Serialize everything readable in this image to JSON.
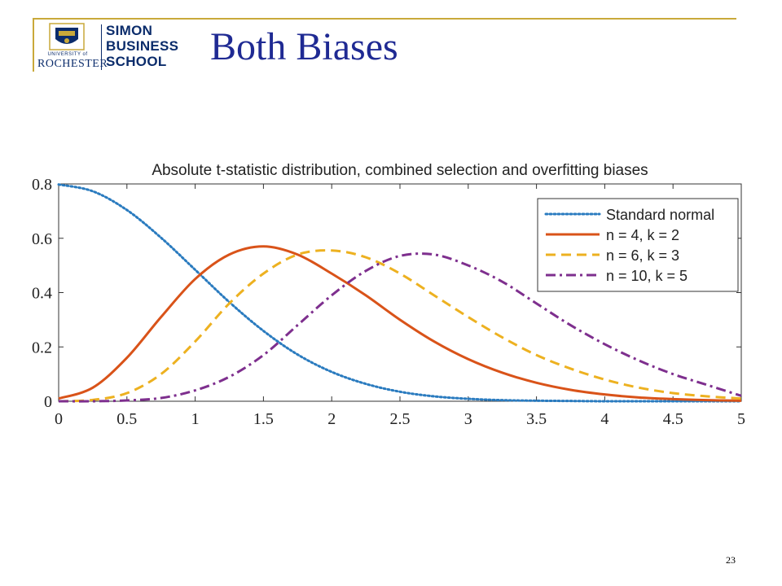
{
  "slide": {
    "title": "Both Biases",
    "page_number": "23"
  },
  "logo": {
    "university_small": "UNIVERSITY of",
    "university_name": "ROCHESTER",
    "school_lines": [
      "SIMON",
      "BUSINESS",
      "SCHOOL"
    ]
  },
  "colors": {
    "title": "#1f2a93",
    "accent_line": "#c9a93a",
    "logo_navy": "#0b2c6b"
  },
  "chart_data": {
    "type": "line",
    "title": "Absolute t-statistic distribution, combined selection and overfitting biases",
    "xlabel": "",
    "ylabel": "",
    "xlim": [
      0,
      5
    ],
    "ylim": [
      0,
      0.8
    ],
    "xticks": [
      "0",
      "0.5",
      "1",
      "1.5",
      "2",
      "2.5",
      "3",
      "3.5",
      "4",
      "4.5",
      "5"
    ],
    "yticks": [
      "0",
      "0.2",
      "0.4",
      "0.6",
      "0.8"
    ],
    "grid": false,
    "legend_position": "top-right",
    "x": [
      0,
      0.25,
      0.5,
      0.75,
      1,
      1.25,
      1.5,
      1.75,
      2,
      2.25,
      2.5,
      2.75,
      3,
      3.25,
      3.5,
      3.75,
      4,
      4.25,
      4.5,
      4.75,
      5
    ],
    "series": [
      {
        "name": "Standard normal",
        "color": "#2a7bbf",
        "dash": "dotted",
        "values": [
          0.798,
          0.773,
          0.704,
          0.602,
          0.484,
          0.365,
          0.259,
          0.172,
          0.108,
          0.064,
          0.035,
          0.018,
          0.009,
          0.004,
          0.002,
          0.001,
          0.0,
          0.0,
          0.0,
          0.0,
          0.0
        ]
      },
      {
        "name": "n = 4, k = 2",
        "color": "#d95319",
        "dash": "solid",
        "values": [
          0.01,
          0.05,
          0.16,
          0.31,
          0.45,
          0.54,
          0.57,
          0.54,
          0.47,
          0.39,
          0.3,
          0.22,
          0.155,
          0.105,
          0.068,
          0.042,
          0.025,
          0.014,
          0.008,
          0.004,
          0.002
        ]
      },
      {
        "name": "n = 6, k = 3",
        "color": "#edb120",
        "dash": "dashed",
        "values": [
          0.0,
          0.005,
          0.03,
          0.1,
          0.22,
          0.36,
          0.47,
          0.54,
          0.555,
          0.53,
          0.47,
          0.39,
          0.31,
          0.235,
          0.17,
          0.12,
          0.08,
          0.05,
          0.03,
          0.018,
          0.01
        ]
      },
      {
        "name": "n = 10, k = 5",
        "color": "#7e2f8e",
        "dash": "dashdot",
        "values": [
          0.0,
          0.0,
          0.003,
          0.012,
          0.04,
          0.09,
          0.17,
          0.28,
          0.39,
          0.48,
          0.535,
          0.54,
          0.5,
          0.44,
          0.36,
          0.28,
          0.21,
          0.15,
          0.1,
          0.06,
          0.02
        ]
      }
    ]
  }
}
